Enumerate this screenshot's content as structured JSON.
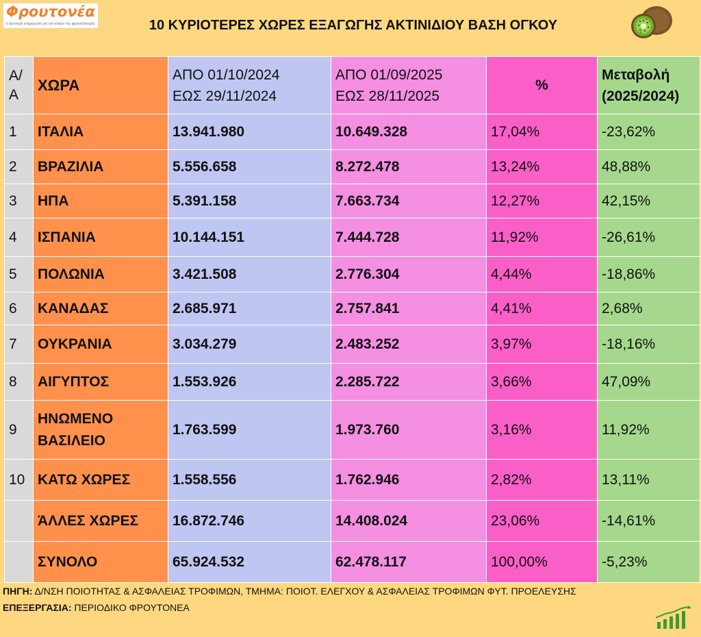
{
  "header": {
    "logo_text": "Φρουτονέα",
    "logo_tagline": "η δροσερή ενημέρωση για τον κόσμο της φρουτοαγοράς",
    "title": "10 ΚΥΡΙΟΤΕΡΕΣ ΧΩΡΕΣ ΕΞΑΓΩΓΗΣ ΑΚΤΙΝΙΔΙΟΥ ΒΑΣΗ ΟΓΚΟΥ",
    "icon": "kiwi-icon"
  },
  "table": {
    "columns": {
      "aa_line1": "Α/",
      "aa_line2": "Α",
      "country": "ΧΩΡΑ",
      "period1_line1": "ΑΠΟ 01/10/2024",
      "period1_line2": "ΕΩΣ  29/11/2024",
      "period2_line1": "ΑΠΟ 01/09/2025",
      "period2_line2": "ΕΩΣ  28/11/2025",
      "percent": "%",
      "change_line1": "Μεταβολή",
      "change_line2": "(2025/2024)"
    },
    "rows": [
      {
        "aa": "1",
        "country": "ΙΤΑΛΙΑ",
        "v2024": "13.941.980",
        "v2025": "10.649.328",
        "pct": "17,04%",
        "change": "-23,62%"
      },
      {
        "aa": "2",
        "country": "ΒΡΑΖΙΛΙΑ",
        "v2024": "5.556.658",
        "v2025": "8.272.478",
        "pct": "13,24%",
        "change": "48,88%"
      },
      {
        "aa": "3",
        "country": "ΗΠΑ",
        "v2024": "5.391.158",
        "v2025": "7.663.734",
        "pct": "12,27%",
        "change": "42,15%"
      },
      {
        "aa": "4",
        "country": "ΙΣΠΑΝΙΑ",
        "v2024": "10.144.151",
        "v2025": "7.444.728",
        "pct": "11,92%",
        "change": "-26,61%"
      },
      {
        "aa": "5",
        "country": "ΠΟΛΩΝΙΑ",
        "v2024": "3.421.508",
        "v2025": "2.776.304",
        "pct": "4,44%",
        "change": "-18,86%"
      },
      {
        "aa": "6",
        "country": "ΚΑΝΑΔΑΣ",
        "v2024": "2.685.971",
        "v2025": "2.757.841",
        "pct": "4,41%",
        "change": "2,68%"
      },
      {
        "aa": "7",
        "country": "ΟΥΚΡΑΝΙΑ",
        "v2024": "3.034.279",
        "v2025": "2.483.252",
        "pct": "3,97%",
        "change": "-18,16%"
      },
      {
        "aa": "8",
        "country": "ΑΙΓΥΠΤΟΣ",
        "v2024": "1.553.926",
        "v2025": "2.285.722",
        "pct": "3,66%",
        "change": "47,09%"
      },
      {
        "aa": "9",
        "country_line1": "ΗΝΩΜΕΝΟ",
        "country_line2": "ΒΑΣΙΛΕΙΟ",
        "v2024": "1.763.599",
        "v2025": "1.973.760",
        "pct": "3,16%",
        "change": "11,92%"
      },
      {
        "aa": "10",
        "country": "ΚΑΤΩ ΧΩΡΕΣ",
        "v2024": "1.558.556",
        "v2025": "1.762.946",
        "pct": "2,82%",
        "change": "13,11%"
      },
      {
        "aa": "",
        "country": "ΆΛΛΕΣ ΧΩΡΕΣ",
        "v2024": "16.872.746",
        "v2025": "14.408.024",
        "pct": "23,06%",
        "change": "-14,61%"
      },
      {
        "aa": "",
        "country": "ΣΥΝΟΛΟ",
        "v2024": "65.924.532",
        "v2025": "62.478.117",
        "pct": "100,00%",
        "change": "-5,23%"
      }
    ]
  },
  "footer": {
    "source_label": "ΠΗΓΗ:",
    "source_text": " Δ/ΝΣΗ ΠΟΙΟΤΗΤΑΣ & ΑΣΦΑΛΕΙΑΣ ΤΡΟΦΙΜΩΝ, ΤΜΗΜΑ: ΠΟΙΟΤ. ΕΛΕΓΧΟΥ & ΑΣΦΑΛΕΙΑΣ ΤΡΟΦΙΜΩΝ ΦΥΤ. ΠΡΟΕΛΕΥΣΗΣ",
    "processing_label": "ΕΠΕΞΕΡΓΑΣΙΑ:",
    "processing_text": " ΠΕΡΙΟΔΙΚΟ ΦΡΟΥΤΟΝΕΑ",
    "icon": "growth-chart-icon"
  },
  "colors": {
    "background": "#fed880",
    "aa_column": "#d9d9d9",
    "country_column": "#ff914d",
    "period2024_column": "#c0c6f2",
    "period2025_column": "#f48fe2",
    "percent_column": "#fa5fc8",
    "change_column": "#a5d88c",
    "logo_orange": "#f1802a"
  },
  "chart_data": {
    "type": "table",
    "title": "10 ΚΥΡΙΟΤΕΡΕΣ ΧΩΡΕΣ ΕΞΑΓΩΓΗΣ ΑΚΤΙΝΙΔΙΟΥ ΒΑΣΗ ΟΓΚΟΥ",
    "columns": [
      "Α/Α",
      "ΧΩΡΑ",
      "ΑΠΟ 01/10/2024 ΕΩΣ 29/11/2024",
      "ΑΠΟ 01/09/2025 ΕΩΣ 28/11/2025",
      "%",
      "Μεταβολή (2025/2024)"
    ],
    "categories": [
      "ΙΤΑΛΙΑ",
      "ΒΡΑΖΙΛΙΑ",
      "ΗΠΑ",
      "ΙΣΠΑΝΙΑ",
      "ΠΟΛΩΝΙΑ",
      "ΚΑΝΑΔΑΣ",
      "ΟΥΚΡΑΝΙΑ",
      "ΑΙΓΥΠΤΟΣ",
      "ΗΝΩΜΕΝΟ ΒΑΣΙΛΕΙΟ",
      "ΚΑΤΩ ΧΩΡΕΣ",
      "ΆΛΛΕΣ ΧΩΡΕΣ",
      "ΣΥΝΟΛΟ"
    ],
    "series": [
      {
        "name": "ΑΠΟ 01/10/2024 ΕΩΣ 29/11/2024",
        "values": [
          13941980,
          5556658,
          5391158,
          10144151,
          3421508,
          2685971,
          3034279,
          1553926,
          1763599,
          1558556,
          16872746,
          65924532
        ]
      },
      {
        "name": "ΑΠΟ 01/09/2025 ΕΩΣ 28/11/2025",
        "values": [
          10649328,
          8272478,
          7663734,
          7444728,
          2776304,
          2757841,
          2483252,
          2285722,
          1973760,
          1762946,
          14408024,
          62478117
        ]
      },
      {
        "name": "%",
        "values": [
          17.04,
          13.24,
          12.27,
          11.92,
          4.44,
          4.41,
          3.97,
          3.66,
          3.16,
          2.82,
          23.06,
          100.0
        ]
      },
      {
        "name": "Μεταβολή (2025/2024)",
        "values": [
          -23.62,
          48.88,
          42.15,
          -26.61,
          -18.86,
          2.68,
          -18.16,
          47.09,
          11.92,
          13.11,
          -14.61,
          -5.23
        ]
      }
    ]
  }
}
